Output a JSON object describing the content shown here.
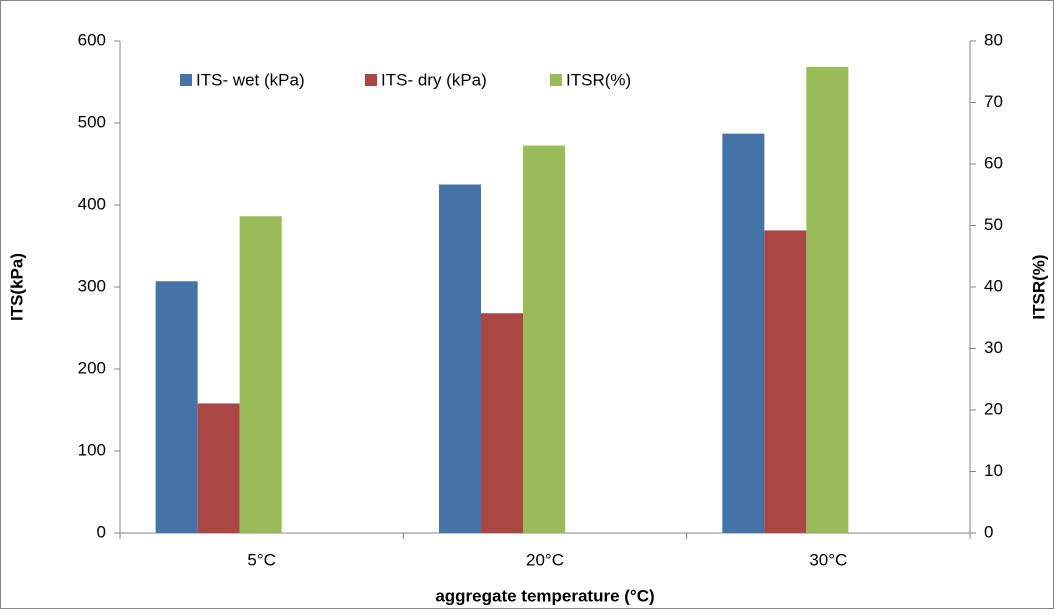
{
  "chart_data": {
    "type": "bar",
    "x_label": "aggregate temperature (°C)",
    "y_label": "ITS(kPa)",
    "y2_label": "ITSR(%)",
    "categories": [
      "5°C",
      "20°C",
      "30°C"
    ],
    "series": [
      {
        "name": "ITS- wet (kPa)",
        "color": "#4572A7",
        "values": [
          307,
          425,
          487
        ]
      },
      {
        "name": "ITS- dry (kPa)",
        "color": "#AA4643",
        "values": [
          158,
          268,
          369
        ]
      },
      {
        "name": "ITSR(%)",
        "color": "#9BBB59",
        "values": [
          51.5,
          63,
          75.8
        ],
        "axis": "y2"
      }
    ],
    "ylim": [
      0,
      600
    ],
    "yticks": [
      0,
      100,
      200,
      300,
      400,
      500,
      600
    ],
    "y2lim": [
      0,
      80
    ],
    "y2ticks": [
      0,
      10,
      20,
      30,
      40,
      50,
      60,
      70,
      80
    ],
    "legend": "top-left"
  }
}
